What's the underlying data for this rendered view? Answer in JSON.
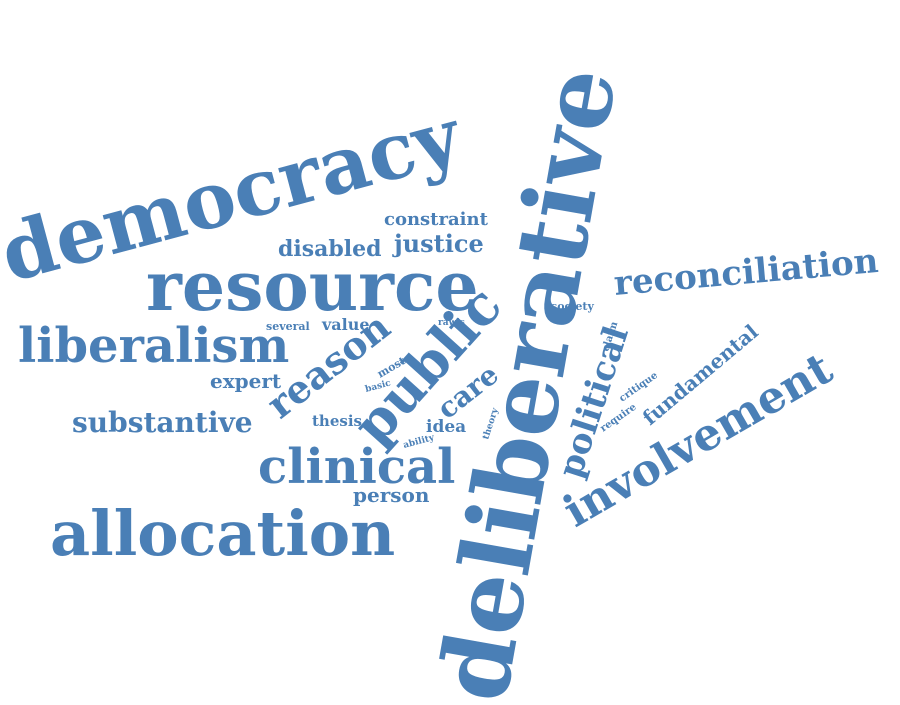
{
  "color": "#4a7fb6",
  "words": {
    "deliberative": "deliberative",
    "democracy": "democracy",
    "resource": "resource",
    "allocation": "allocation",
    "liberalism": "liberalism",
    "public": "public",
    "clinical": "clinical",
    "involvement": "involvement",
    "reconciliation": "reconciliation",
    "reason": "reason",
    "political": "political",
    "substantive": "substantive",
    "justice": "justice",
    "disabled": "disabled",
    "constraint": "constraint",
    "fundamental": "fundamental",
    "care": "care",
    "expert": "expert",
    "person": "person",
    "value": "value",
    "several": "several",
    "thesis": "thesis",
    "idea": "idea",
    "most": "most",
    "basic": "basic",
    "rawls": "rawls",
    "society": "society",
    "claim": "claim",
    "critique": "critique",
    "require": "require",
    "theory": "theory",
    "ability": "ability"
  }
}
